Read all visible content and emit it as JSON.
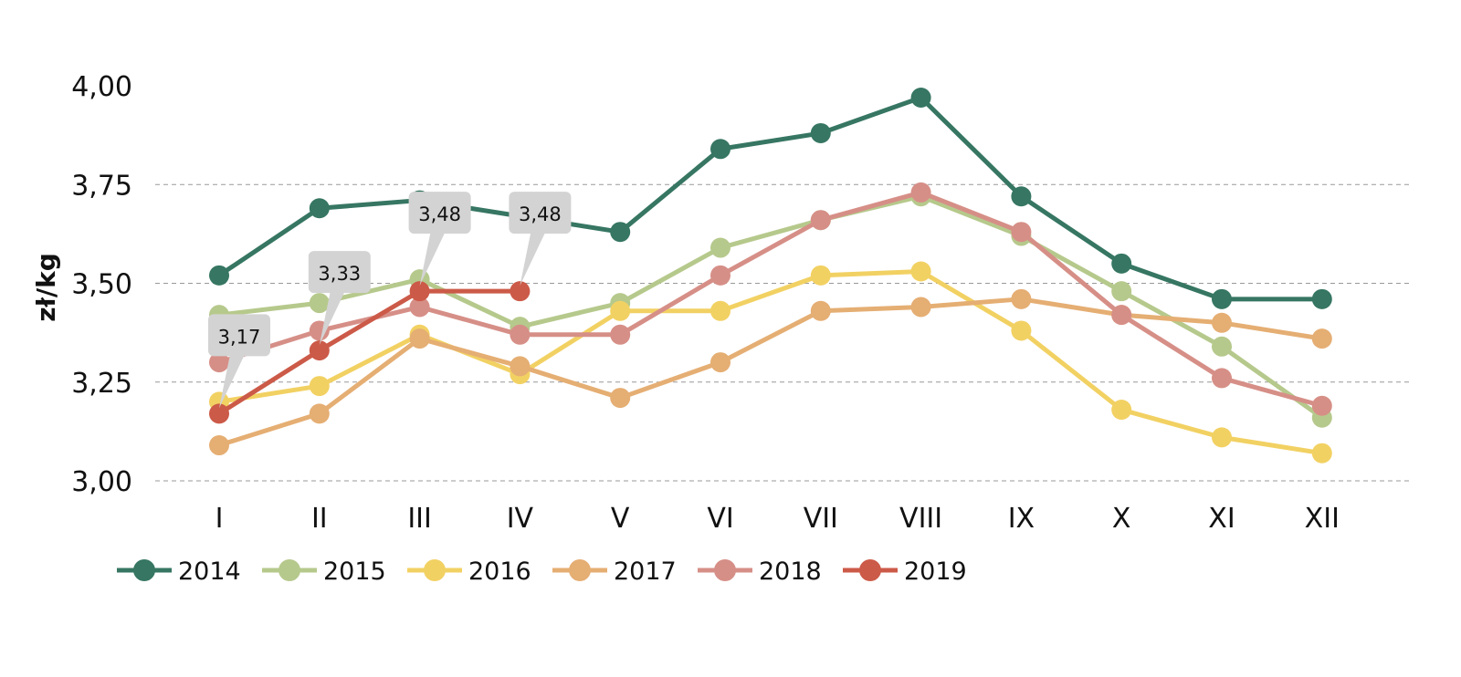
{
  "chart_data": {
    "type": "line",
    "ylabel": "zł/kg",
    "xlabel": "",
    "ylim": [
      3.0,
      4.0
    ],
    "yticks": [
      "3,00",
      "3,25",
      "3,50",
      "3,75",
      "4,00"
    ],
    "ytick_values": [
      3.0,
      3.25,
      3.5,
      3.75,
      4.0
    ],
    "grid": "horizontal dashed",
    "legend_position": "bottom-left",
    "categories": [
      "I",
      "II",
      "III",
      "IV",
      "V",
      "VI",
      "VII",
      "VIII",
      "IX",
      "X",
      "XI",
      "XII"
    ],
    "series": [
      {
        "name": "2014",
        "color": "#367662",
        "values": [
          3.52,
          3.69,
          3.71,
          3.67,
          3.63,
          3.84,
          3.88,
          3.97,
          3.72,
          3.55,
          3.46,
          3.46
        ]
      },
      {
        "name": "2015",
        "color": "#b6c98c",
        "values": [
          3.42,
          3.45,
          3.51,
          3.39,
          3.45,
          3.59,
          3.66,
          3.72,
          3.62,
          3.48,
          3.34,
          3.16
        ]
      },
      {
        "name": "2016",
        "color": "#f2d163",
        "values": [
          3.2,
          3.24,
          3.37,
          3.27,
          3.43,
          3.43,
          3.52,
          3.53,
          3.38,
          3.18,
          3.11,
          3.07
        ]
      },
      {
        "name": "2017",
        "color": "#e5ae73",
        "values": [
          3.09,
          3.17,
          3.36,
          3.29,
          3.21,
          3.3,
          3.43,
          3.44,
          3.46,
          3.42,
          3.4,
          3.36
        ]
      },
      {
        "name": "2018",
        "color": "#d68f87",
        "values": [
          3.3,
          3.38,
          3.44,
          3.37,
          3.37,
          3.52,
          3.66,
          3.73,
          3.63,
          3.42,
          3.26,
          3.19
        ]
      },
      {
        "name": "2019",
        "color": "#cc5a48",
        "values": [
          3.17,
          3.33,
          3.48,
          3.48,
          null,
          null,
          null,
          null,
          null,
          null,
          null,
          null
        ]
      }
    ],
    "annotations": [
      {
        "series": "2019",
        "category": "I",
        "text": "3,17"
      },
      {
        "series": "2019",
        "category": "II",
        "text": "3,33"
      },
      {
        "series": "2019",
        "category": "III",
        "text": "3,48"
      },
      {
        "series": "2019",
        "category": "IV",
        "text": "3,48"
      }
    ]
  }
}
